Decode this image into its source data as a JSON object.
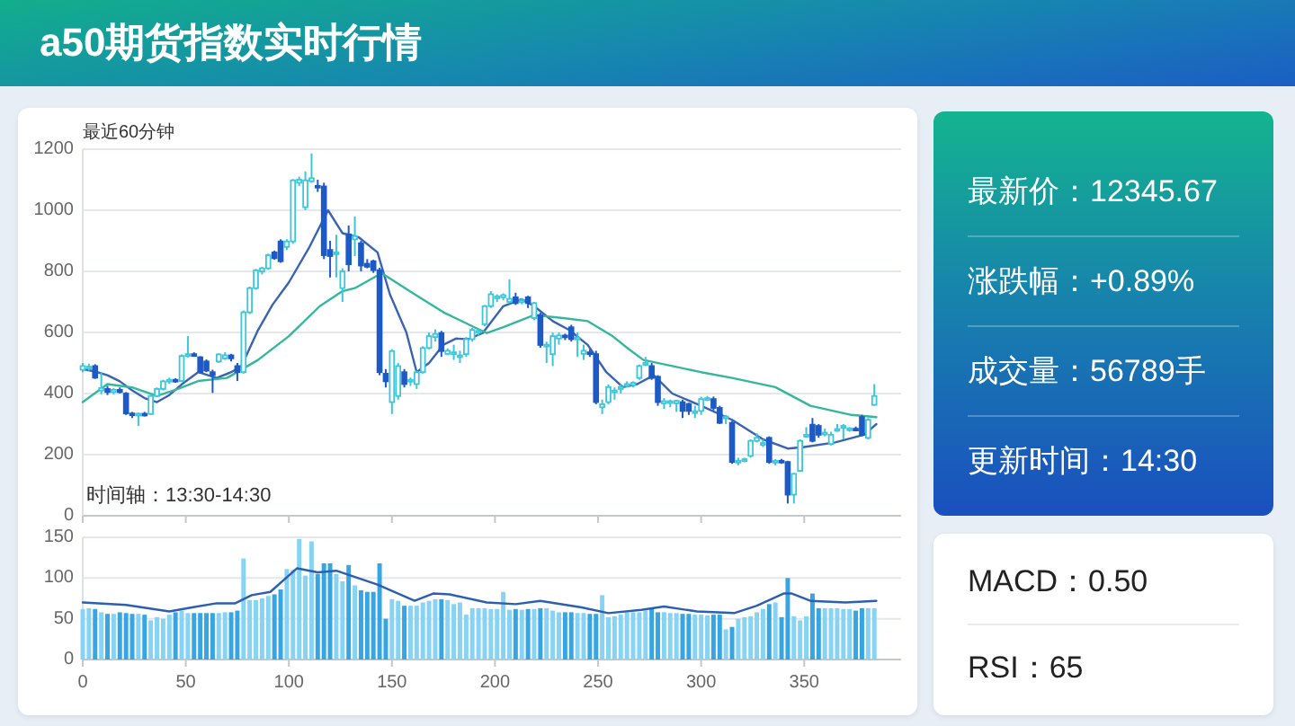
{
  "chart_data": [
    {
      "type": "candlestick",
      "title": "a50期货指数实时行情",
      "subtitle": "最近60分钟",
      "annotations": [
        "时间轴：13:30-14:30"
      ],
      "x": [
        0,
        3,
        6,
        9,
        12,
        15,
        18,
        21,
        24,
        27,
        30,
        33,
        36,
        39,
        42,
        45,
        48,
        51,
        54,
        57,
        60,
        63,
        66,
        69,
        72,
        75,
        78,
        81,
        84,
        87,
        90,
        93,
        96,
        99,
        102,
        105,
        108,
        111,
        114,
        117,
        120,
        123,
        126,
        129,
        132,
        135,
        138,
        141,
        144,
        147,
        150,
        153,
        156,
        159,
        162,
        165,
        168,
        171,
        174,
        177,
        180,
        183,
        186,
        189,
        192,
        195,
        198,
        201,
        204,
        207,
        210,
        213,
        216,
        219,
        222,
        225,
        228,
        231,
        234,
        237,
        240,
        243,
        246,
        249,
        252,
        255,
        258,
        261,
        264,
        267,
        270,
        273,
        276,
        279,
        282,
        285,
        288,
        291,
        294,
        297,
        300,
        303,
        306,
        309,
        312,
        315,
        318,
        321,
        324,
        327,
        330,
        333,
        336,
        339,
        342,
        345,
        348,
        351,
        354,
        357,
        360,
        363,
        366,
        369,
        372,
        375,
        378,
        381,
        384
      ],
      "ohlc": [
        [
          478,
          500,
          470,
          490
        ],
        [
          485,
          498,
          475,
          488
        ],
        [
          490,
          496,
          448,
          452
        ],
        [
          410,
          470,
          398,
          418
        ],
        [
          415,
          425,
          395,
          405
        ],
        [
          405,
          418,
          398,
          412
        ],
        [
          412,
          420,
          400,
          405
        ],
        [
          400,
          405,
          330,
          335
        ],
        [
          335,
          340,
          320,
          330
        ],
        [
          330,
          338,
          294,
          334
        ],
        [
          334,
          340,
          325,
          332
        ],
        [
          333,
          396,
          330,
          392
        ],
        [
          392,
          420,
          388,
          415
        ],
        [
          415,
          445,
          410,
          440
        ],
        [
          440,
          452,
          432,
          445
        ],
        [
          445,
          450,
          435,
          441
        ],
        [
          441,
          528,
          438,
          523
        ],
        [
          523,
          588,
          518,
          529
        ],
        [
          529,
          535,
          520,
          525
        ],
        [
          519,
          522,
          465,
          470
        ],
        [
          505,
          512,
          470,
          475
        ],
        [
          470,
          478,
          402,
          460
        ],
        [
          505,
          532,
          500,
          528
        ],
        [
          515,
          535,
          510,
          525
        ],
        [
          525,
          530,
          505,
          515
        ],
        [
          490,
          500,
          441,
          470
        ],
        [
          470,
          672,
          465,
          666
        ],
        [
          666,
          750,
          660,
          745
        ],
        [
          745,
          808,
          740,
          803
        ],
        [
          800,
          815,
          790,
          810
        ],
        [
          810,
          858,
          805,
          853
        ],
        [
          862,
          868,
          838,
          843
        ],
        [
          898,
          905,
          828,
          833
        ],
        [
          880,
          905,
          870,
          898
        ],
        [
          898,
          1102,
          890,
          1098
        ],
        [
          1090,
          1110,
          1080,
          1100
        ],
        [
          1010,
          1127,
          1000,
          1098
        ],
        [
          1095,
          1186,
          1090,
          1105
        ],
        [
          1080,
          1100,
          1060,
          1078
        ],
        [
          1078,
          1090,
          840,
          853
        ],
        [
          870,
          900,
          780,
          850
        ],
        [
          858,
          920,
          780,
          862
        ],
        [
          745,
          810,
          700,
          800
        ],
        [
          921,
          950,
          800,
          823
        ],
        [
          905,
          980,
          850,
          915
        ],
        [
          892,
          900,
          800,
          819
        ],
        [
          825,
          840,
          810,
          815
        ],
        [
          833,
          838,
          795,
          804
        ],
        [
          804,
          812,
          460,
          470
        ],
        [
          465,
          480,
          420,
          440
        ],
        [
          372,
          545,
          333,
          539
        ],
        [
          392,
          500,
          380,
          490
        ],
        [
          470,
          480,
          420,
          431
        ],
        [
          440,
          452,
          425,
          445
        ],
        [
          431,
          475,
          415,
          470
        ],
        [
          470,
          555,
          465,
          549
        ],
        [
          549,
          600,
          545,
          588
        ],
        [
          585,
          610,
          570,
          595
        ],
        [
          598,
          605,
          520,
          539
        ],
        [
          530,
          548,
          525,
          540
        ],
        [
          530,
          560,
          510,
          535
        ],
        [
          520,
          540,
          500,
          525
        ],
        [
          529,
          585,
          520,
          578
        ],
        [
          578,
          615,
          570,
          608
        ],
        [
          600,
          612,
          590,
          605
        ],
        [
          627,
          690,
          620,
          686
        ],
        [
          686,
          735,
          680,
          725
        ],
        [
          712,
          725,
          700,
          718
        ],
        [
          715,
          728,
          705,
          722
        ],
        [
          700,
          774,
          695,
          710
        ],
        [
          715,
          730,
          690,
          696
        ],
        [
          700,
          712,
          692,
          705
        ],
        [
          715,
          720,
          680,
          696
        ],
        [
          647,
          700,
          640,
          696
        ],
        [
          657,
          665,
          550,
          559
        ],
        [
          555,
          570,
          500,
          560
        ],
        [
          529,
          600,
          490,
          588
        ],
        [
          580,
          600,
          560,
          590
        ],
        [
          590,
          596,
          575,
          585
        ],
        [
          617,
          625,
          570,
          578
        ],
        [
          578,
          600,
          520,
          583
        ],
        [
          530,
          560,
          510,
          540
        ],
        [
          535,
          545,
          520,
          529
        ],
        [
          529,
          540,
          365,
          372
        ],
        [
          355,
          380,
          333,
          365
        ],
        [
          372,
          430,
          365,
          421
        ],
        [
          405,
          420,
          380,
          410
        ],
        [
          415,
          430,
          400,
          421
        ],
        [
          425,
          440,
          420,
          431
        ],
        [
          428,
          440,
          420,
          435
        ],
        [
          451,
          495,
          445,
          490
        ],
        [
          495,
          520,
          490,
          500
        ],
        [
          490,
          500,
          445,
          451
        ],
        [
          455,
          460,
          360,
          372
        ],
        [
          368,
          385,
          350,
          375
        ],
        [
          370,
          380,
          355,
          375
        ],
        [
          368,
          380,
          340,
          376
        ],
        [
          372,
          380,
          320,
          343
        ],
        [
          366,
          370,
          330,
          343
        ],
        [
          338,
          360,
          320,
          342
        ],
        [
          343,
          390,
          330,
          382
        ],
        [
          382,
          392,
          375,
          385
        ],
        [
          382,
          390,
          345,
          353
        ],
        [
          353,
          360,
          300,
          304
        ],
        [
          320,
          330,
          300,
          325
        ],
        [
          304,
          310,
          170,
          176
        ],
        [
          176,
          190,
          165,
          180
        ],
        [
          180,
          190,
          175,
          185
        ],
        [
          196,
          250,
          190,
          245
        ],
        [
          245,
          270,
          240,
          255
        ],
        [
          232,
          250,
          225,
          238
        ],
        [
          255,
          260,
          170,
          176
        ],
        [
          176,
          185,
          165,
          180
        ],
        [
          180,
          186,
          170,
          178
        ],
        [
          176,
          180,
          40,
          69
        ],
        [
          69,
          140,
          40,
          137
        ],
        [
          147,
          250,
          145,
          245
        ],
        [
          260,
          290,
          255,
          265
        ],
        [
          298,
          320,
          240,
          245
        ],
        [
          294,
          300,
          255,
          265
        ],
        [
          268,
          285,
          260,
          272
        ],
        [
          235,
          275,
          230,
          265
        ],
        [
          280,
          300,
          275,
          284
        ],
        [
          290,
          300,
          250,
          294
        ],
        [
          282,
          290,
          275,
          286
        ],
        [
          285,
          292,
          278,
          284
        ],
        [
          323,
          330,
          260,
          265
        ],
        [
          255,
          320,
          250,
          314
        ],
        [
          363,
          431,
          360,
          392
        ]
      ],
      "colors": [
        "#3cc6da",
        "#3cc6da",
        "#1d5ac6",
        "#3cc6da",
        "#1d5ac6",
        "#3cc6da",
        "#1d5ac6",
        "#1d5ac6",
        "#1d5ac6",
        "#3cc6da",
        "#1d5ac6",
        "#3cc6da",
        "#3cc6da",
        "#3cc6da",
        "#3cc6da",
        "#1d5ac6",
        "#3cc6da",
        "#3cc6da",
        "#1d5ac6",
        "#1d5ac6",
        "#1d5ac6",
        "#1d5ac6",
        "#3cc6da",
        "#3cc6da",
        "#1d5ac6",
        "#1d5ac6",
        "#3cc6da",
        "#3cc6da",
        "#3cc6da",
        "#3cc6da",
        "#3cc6da",
        "#1d5ac6",
        "#1d5ac6",
        "#3cc6da",
        "#3cc6da",
        "#3cc6da",
        "#3cc6da",
        "#3cc6da",
        "#1d5ac6",
        "#1d5ac6",
        "#1d5ac6",
        "#3cc6da",
        "#3cc6da",
        "#1d5ac6",
        "#3cc6da",
        "#1d5ac6",
        "#1d5ac6",
        "#1d5ac6",
        "#1d5ac6",
        "#1d5ac6",
        "#3cc6da",
        "#3cc6da",
        "#1d5ac6",
        "#3cc6da",
        "#3cc6da",
        "#3cc6da",
        "#3cc6da",
        "#3cc6da",
        "#1d5ac6",
        "#3cc6da",
        "#3cc6da",
        "#3cc6da",
        "#3cc6da",
        "#3cc6da",
        "#3cc6da",
        "#3cc6da",
        "#3cc6da",
        "#3cc6da",
        "#3cc6da",
        "#3cc6da",
        "#1d5ac6",
        "#3cc6da",
        "#1d5ac6",
        "#3cc6da",
        "#1d5ac6",
        "#3cc6da",
        "#3cc6da",
        "#3cc6da",
        "#1d5ac6",
        "#1d5ac6",
        "#3cc6da",
        "#3cc6da",
        "#1d5ac6",
        "#1d5ac6",
        "#3cc6da",
        "#3cc6da",
        "#3cc6da",
        "#3cc6da",
        "#3cc6da",
        "#3cc6da",
        "#3cc6da",
        "#3cc6da",
        "#1d5ac6",
        "#1d5ac6",
        "#3cc6da",
        "#3cc6da",
        "#3cc6da",
        "#1d5ac6",
        "#1d5ac6",
        "#3cc6da",
        "#3cc6da",
        "#3cc6da",
        "#1d5ac6",
        "#1d5ac6",
        "#3cc6da",
        "#1d5ac6",
        "#3cc6da",
        "#3cc6da",
        "#3cc6da",
        "#3cc6da",
        "#3cc6da",
        "#1d5ac6",
        "#3cc6da",
        "#1d5ac6",
        "#1d5ac6",
        "#3cc6da",
        "#3cc6da",
        "#3cc6da",
        "#1d5ac6",
        "#1d5ac6",
        "#3cc6da",
        "#3cc6da",
        "#3cc6da",
        "#3cc6da",
        "#3cc6da",
        "#1d5ac6",
        "#1d5ac6",
        "#3cc6da",
        "#3cc6da"
      ],
      "series": [
        {
          "type": "line",
          "color": "#3b63b4",
          "x": [
            0,
            6,
            12,
            18,
            24,
            30,
            36,
            42,
            48,
            56,
            65,
            72,
            77,
            85,
            92,
            100,
            110,
            119,
            126,
            134,
            143,
            149,
            157,
            162,
            168,
            175,
            181,
            187,
            194,
            204,
            213,
            219,
            228,
            236,
            245,
            254,
            262,
            269,
            277,
            286,
            300,
            315,
            330,
            342,
            350,
            365,
            379,
            385
          ],
          "values": [
            480,
            472,
            460,
            440,
            410,
            385,
            372,
            395,
            430,
            470,
            451,
            470,
            490,
            607,
            690,
            764,
            880,
            1000,
            925,
            911,
            862,
            725,
            600,
            470,
            500,
            560,
            580,
            578,
            598,
            686,
            709,
            686,
            637,
            608,
            559,
            470,
            421,
            431,
            460,
            400,
            360,
            314,
            250,
            220,
            225,
            240,
            265,
            300
          ]
        },
        {
          "type": "line",
          "color": "#34b79c",
          "x": [
            0,
            12,
            24,
            36,
            45,
            56,
            70,
            85,
            100,
            115,
            126,
            132,
            145,
            161,
            175,
            190,
            196,
            204,
            219,
            233,
            245,
            257,
            265,
            272,
            286,
            300,
            315,
            336,
            353,
            373,
            385
          ],
          "values": [
            372,
            431,
            420,
            392,
            412,
            441,
            451,
            510,
            588,
            686,
            735,
            745,
            794,
            725,
            666,
            617,
            598,
            617,
            657,
            647,
            637,
            588,
            545,
            510,
            490,
            470,
            451,
            421,
            360,
            330,
            323
          ]
        }
      ],
      "xlim": [
        0,
        397
      ],
      "xticks": [
        0,
        50,
        100,
        150,
        200,
        250,
        300,
        350
      ],
      "ylim": [
        0,
        1200
      ],
      "yticks": [
        0,
        200,
        400,
        600,
        800,
        1000,
        1200
      ],
      "grid": "y",
      "tick_labels": "y"
    },
    {
      "type": "bar",
      "x": [
        0,
        3,
        6,
        9,
        12,
        15,
        18,
        21,
        24,
        27,
        30,
        33,
        36,
        39,
        42,
        45,
        48,
        51,
        54,
        57,
        60,
        63,
        66,
        69,
        72,
        75,
        78,
        81,
        84,
        87,
        90,
        93,
        96,
        99,
        102,
        105,
        108,
        111,
        114,
        117,
        120,
        123,
        126,
        129,
        132,
        135,
        138,
        141,
        144,
        147,
        150,
        153,
        156,
        159,
        162,
        165,
        168,
        171,
        174,
        177,
        180,
        183,
        186,
        189,
        192,
        195,
        198,
        201,
        204,
        207,
        210,
        213,
        216,
        219,
        222,
        225,
        228,
        231,
        234,
        237,
        240,
        243,
        246,
        249,
        252,
        255,
        258,
        261,
        264,
        267,
        270,
        273,
        276,
        279,
        282,
        285,
        288,
        291,
        294,
        297,
        300,
        303,
        306,
        309,
        312,
        315,
        318,
        321,
        324,
        327,
        330,
        333,
        336,
        339,
        342,
        345,
        348,
        351,
        354,
        357,
        360,
        363,
        366,
        369,
        372,
        375,
        378,
        381,
        384
      ],
      "series": [
        {
          "type": "bar",
          "values": [
            62,
            63,
            62,
            58,
            56,
            56,
            58,
            57,
            56,
            56,
            55,
            48,
            52,
            50,
            55,
            58,
            60,
            57,
            57,
            57,
            57,
            57,
            57,
            58,
            58,
            60,
            124,
            73,
            73,
            75,
            78,
            80,
            86,
            111,
            110,
            148,
            103,
            145,
            105,
            118,
            118,
            105,
            96,
            116,
            91,
            85,
            83,
            83,
            118,
            50,
            74,
            72,
            66,
            66,
            66,
            70,
            72,
            74,
            74,
            73,
            68,
            70,
            55,
            63,
            63,
            63,
            62,
            62,
            83,
            61,
            62,
            61,
            62,
            62,
            63,
            63,
            60,
            58,
            58,
            58,
            57,
            57,
            56,
            56,
            79,
            52,
            53,
            55,
            58,
            58,
            58,
            60,
            62,
            58,
            58,
            57,
            57,
            56,
            56,
            55,
            55,
            54,
            55,
            55,
            37,
            40,
            50,
            52,
            53,
            58,
            62,
            68,
            70,
            52,
            100,
            53,
            48,
            53,
            81,
            63,
            63,
            63,
            63,
            62,
            62,
            60,
            63,
            63,
            63
          ],
          "colors": [
            "#86d3f5",
            "#86d3f5",
            "#35a5e3",
            "#86d3f5",
            "#35a5e3",
            "#86d3f5",
            "#35a5e3",
            "#35a5e3",
            "#35a5e3",
            "#86d3f5",
            "#35a5e3",
            "#86d3f5",
            "#86d3f5",
            "#86d3f5",
            "#86d3f5",
            "#35a5e3",
            "#86d3f5",
            "#86d3f5",
            "#35a5e3",
            "#35a5e3",
            "#35a5e3",
            "#35a5e3",
            "#86d3f5",
            "#86d3f5",
            "#35a5e3",
            "#35a5e3",
            "#86d3f5",
            "#86d3f5",
            "#86d3f5",
            "#86d3f5",
            "#86d3f5",
            "#35a5e3",
            "#35a5e3",
            "#86d3f5",
            "#86d3f5",
            "#86d3f5",
            "#86d3f5",
            "#86d3f5",
            "#35a5e3",
            "#35a5e3",
            "#35a5e3",
            "#86d3f5",
            "#86d3f5",
            "#35a5e3",
            "#86d3f5",
            "#35a5e3",
            "#35a5e3",
            "#35a5e3",
            "#35a5e3",
            "#35a5e3",
            "#86d3f5",
            "#86d3f5",
            "#35a5e3",
            "#86d3f5",
            "#86d3f5",
            "#86d3f5",
            "#86d3f5",
            "#86d3f5",
            "#35a5e3",
            "#86d3f5",
            "#86d3f5",
            "#86d3f5",
            "#86d3f5",
            "#86d3f5",
            "#86d3f5",
            "#86d3f5",
            "#86d3f5",
            "#86d3f5",
            "#86d3f5",
            "#86d3f5",
            "#35a5e3",
            "#86d3f5",
            "#35a5e3",
            "#86d3f5",
            "#35a5e3",
            "#86d3f5",
            "#86d3f5",
            "#86d3f5",
            "#35a5e3",
            "#35a5e3",
            "#86d3f5",
            "#86d3f5",
            "#35a5e3",
            "#35a5e3",
            "#86d3f5",
            "#86d3f5",
            "#86d3f5",
            "#86d3f5",
            "#86d3f5",
            "#86d3f5",
            "#86d3f5",
            "#86d3f5",
            "#35a5e3",
            "#35a5e3",
            "#86d3f5",
            "#86d3f5",
            "#86d3f5",
            "#35a5e3",
            "#35a5e3",
            "#86d3f5",
            "#86d3f5",
            "#86d3f5",
            "#35a5e3",
            "#35a5e3",
            "#86d3f5",
            "#35a5e3",
            "#86d3f5",
            "#86d3f5",
            "#86d3f5",
            "#86d3f5",
            "#86d3f5",
            "#35a5e3",
            "#86d3f5",
            "#35a5e3",
            "#35a5e3",
            "#86d3f5",
            "#86d3f5",
            "#86d3f5",
            "#35a5e3",
            "#35a5e3",
            "#86d3f5",
            "#86d3f5",
            "#86d3f5",
            "#86d3f5",
            "#86d3f5",
            "#35a5e3",
            "#35a5e3",
            "#86d3f5",
            "#86d3f5"
          ]
        },
        {
          "type": "line",
          "color": "#2c5fb0",
          "x": [
            0,
            21,
            42,
            53,
            65,
            74,
            82,
            91,
            104,
            114,
            123,
            143,
            161,
            170,
            178,
            196,
            210,
            222,
            242,
            255,
            271,
            282,
            298,
            316,
            327,
            340,
            344,
            353,
            370,
            385
          ],
          "values": [
            70,
            67,
            59,
            64,
            69,
            69,
            79,
            83,
            112,
            107,
            109,
            92,
            72,
            81,
            80,
            70,
            68,
            72,
            64,
            57,
            61,
            65,
            59,
            57,
            66,
            81,
            81,
            72,
            70,
            72
          ]
        }
      ],
      "xlim": [
        0,
        397
      ],
      "xticks": [
        0,
        50,
        100,
        150,
        200,
        250,
        300,
        350
      ],
      "ylim": [
        0,
        150
      ],
      "yticks": [
        0,
        50,
        100,
        150
      ],
      "grid": "y"
    },
    {
      "type": "other",
      "annotations": [
        "最新价：12345.67",
        "涨跌幅：+0.89%",
        "成交量：56789手",
        "更新时间：14:30"
      ]
    },
    {
      "type": "other",
      "annotations": [
        "MACD：0.50",
        "RSI：65"
      ]
    }
  ]
}
